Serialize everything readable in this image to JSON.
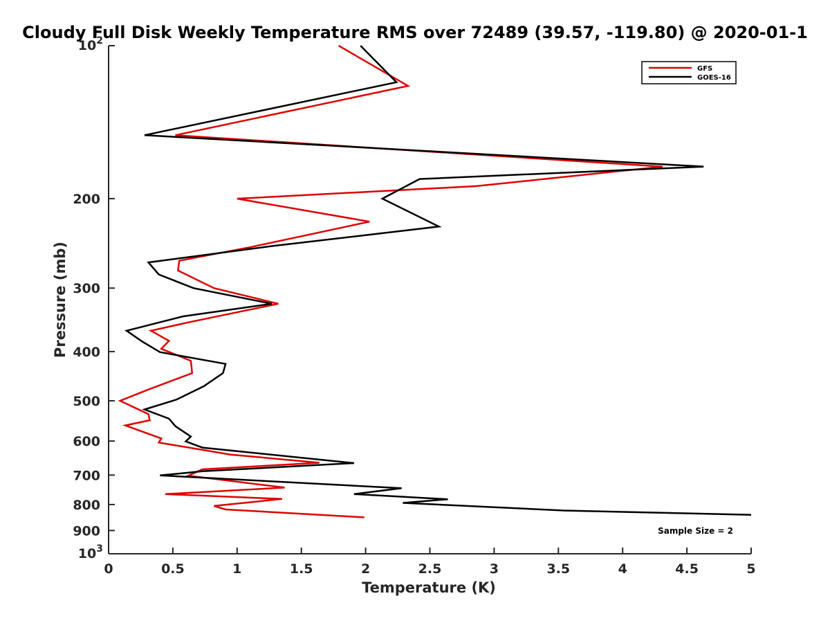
{
  "chart_data": {
    "type": "line",
    "title": "Cloudy Full Disk Weekly Temperature RMS over 72489 (39.57, -119.80) @ 2020-01-1",
    "xlabel": "Temperature (K)",
    "ylabel": "Pressure (mb)",
    "xlim": [
      0,
      5
    ],
    "ylim": [
      100,
      1000
    ],
    "y_scale": "log",
    "y_reversed": true,
    "grid": false,
    "legend_position": "top-right",
    "x_ticks": [
      {
        "value": 0,
        "label": "0"
      },
      {
        "value": 0.5,
        "label": "0.5"
      },
      {
        "value": 1,
        "label": "1"
      },
      {
        "value": 1.5,
        "label": "1.5"
      },
      {
        "value": 2,
        "label": "2"
      },
      {
        "value": 2.5,
        "label": "2.5"
      },
      {
        "value": 3,
        "label": "3"
      },
      {
        "value": 3.5,
        "label": "3.5"
      },
      {
        "value": 4,
        "label": "4"
      },
      {
        "value": 4.5,
        "label": "4.5"
      },
      {
        "value": 5,
        "label": "5"
      }
    ],
    "y_ticks": [
      {
        "value": 100,
        "label": "10",
        "exp": "2"
      },
      {
        "value": 200,
        "label": "200"
      },
      {
        "value": 300,
        "label": "300"
      },
      {
        "value": 400,
        "label": "400"
      },
      {
        "value": 500,
        "label": "500"
      },
      {
        "value": 600,
        "label": "600"
      },
      {
        "value": 700,
        "label": "700"
      },
      {
        "value": 800,
        "label": "800"
      },
      {
        "value": 900,
        "label": "900"
      },
      {
        "value": 1000,
        "label": "10",
        "exp": "3"
      }
    ],
    "annotation": "Sample Size = 2",
    "series": [
      {
        "name": "GFS",
        "color": "#e00000",
        "points": [
          [
            1.79,
            100
          ],
          [
            2.33,
            120
          ],
          [
            0.52,
            150
          ],
          [
            4.31,
            173
          ],
          [
            2.86,
            189
          ],
          [
            1.0,
            200
          ],
          [
            2.03,
            222
          ],
          [
            1.11,
            249
          ],
          [
            0.55,
            265
          ],
          [
            0.54,
            277
          ],
          [
            0.82,
            300
          ],
          [
            1.32,
            322
          ],
          [
            0.63,
            350
          ],
          [
            0.33,
            364
          ],
          [
            0.47,
            381
          ],
          [
            0.41,
            395
          ],
          [
            0.64,
            417
          ],
          [
            0.65,
            441
          ],
          [
            0.31,
            475
          ],
          [
            0.09,
            500
          ],
          [
            0.31,
            531
          ],
          [
            0.32,
            546
          ],
          [
            0.13,
            559
          ],
          [
            0.41,
            593
          ],
          [
            0.39,
            604
          ],
          [
            0.95,
            638
          ],
          [
            1.64,
            662
          ],
          [
            0.73,
            682
          ],
          [
            0.62,
            702
          ],
          [
            1.37,
            741
          ],
          [
            0.44,
            763
          ],
          [
            1.35,
            780
          ],
          [
            0.82,
            805
          ],
          [
            0.91,
            818
          ],
          [
            1.99,
            848
          ]
        ]
      },
      {
        "name": "GOES-16",
        "color": "#000000",
        "points": [
          [
            1.96,
            100
          ],
          [
            2.24,
            118
          ],
          [
            0.28,
            150
          ],
          [
            4.63,
            173
          ],
          [
            2.42,
            183
          ],
          [
            2.13,
            200
          ],
          [
            2.57,
            227
          ],
          [
            1.27,
            248
          ],
          [
            0.31,
            267
          ],
          [
            0.39,
            282
          ],
          [
            0.66,
            300
          ],
          [
            1.27,
            322
          ],
          [
            0.58,
            341
          ],
          [
            0.14,
            364
          ],
          [
            0.26,
            382
          ],
          [
            0.4,
            401
          ],
          [
            0.91,
            423
          ],
          [
            0.89,
            441
          ],
          [
            0.74,
            468
          ],
          [
            0.53,
            497
          ],
          [
            0.28,
            520
          ],
          [
            0.47,
            542
          ],
          [
            0.52,
            561
          ],
          [
            0.64,
            588
          ],
          [
            0.6,
            601
          ],
          [
            0.73,
            618
          ],
          [
            1.91,
            663
          ],
          [
            0.73,
            688
          ],
          [
            0.4,
            701
          ],
          [
            2.28,
            743
          ],
          [
            1.91,
            763
          ],
          [
            2.64,
            781
          ],
          [
            2.29,
            794
          ],
          [
            3.54,
            822
          ],
          [
            5.0,
            838
          ]
        ]
      }
    ]
  }
}
